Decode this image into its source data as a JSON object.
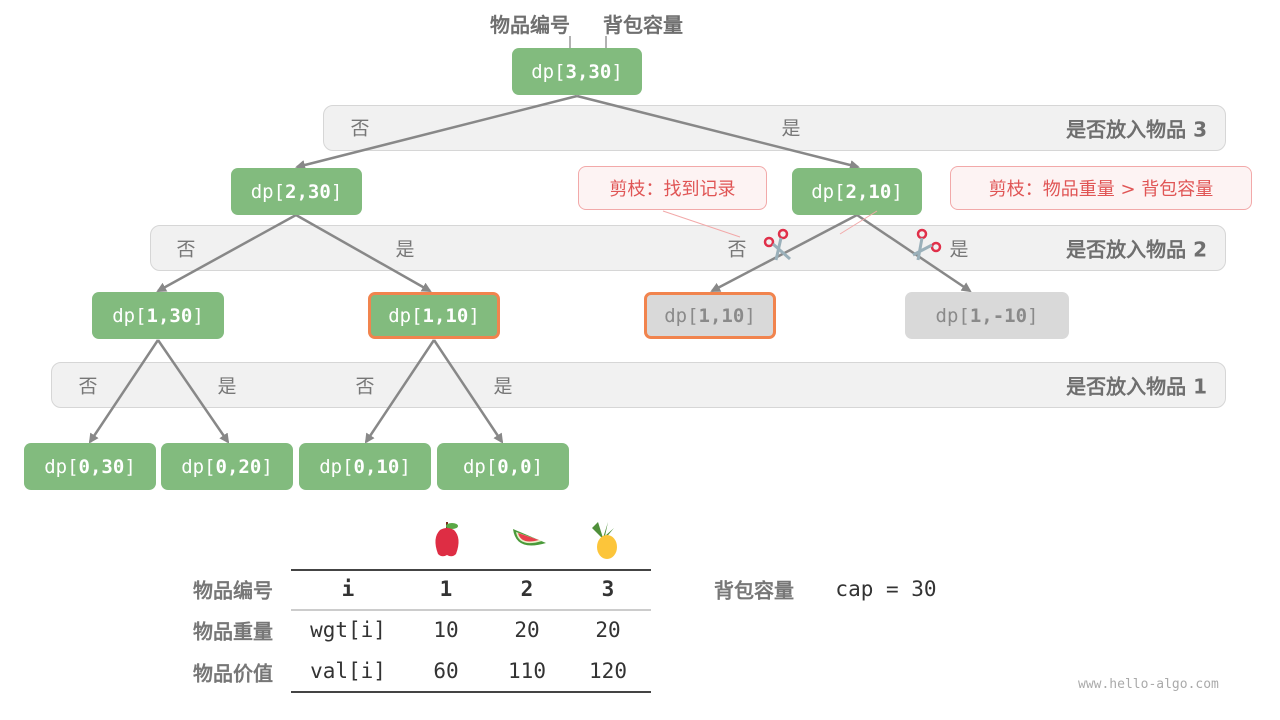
{
  "header": {
    "item_id_label": "物品编号",
    "capacity_label": "背包容量"
  },
  "node_prefix": "dp[",
  "node_suffix": "]",
  "nodes": [
    {
      "id": "root",
      "args": "3,30",
      "state": "normal"
    },
    {
      "id": "l2a",
      "args": "2,30",
      "state": "normal"
    },
    {
      "id": "l2b",
      "args": "2,10",
      "state": "normal"
    },
    {
      "id": "l1a",
      "args": "1,30",
      "state": "normal"
    },
    {
      "id": "l1b",
      "args": "1,10",
      "state": "highlighted"
    },
    {
      "id": "l1c",
      "args": "1,10",
      "state": "pruned-highlighted"
    },
    {
      "id": "l1d",
      "args": "1,-10",
      "state": "pruned"
    },
    {
      "id": "l0a",
      "args": "0,30",
      "state": "normal"
    },
    {
      "id": "l0b",
      "args": "0,20",
      "state": "normal"
    },
    {
      "id": "l0c",
      "args": "0,10",
      "state": "normal"
    },
    {
      "id": "l0d",
      "args": "0,0",
      "state": "normal"
    }
  ],
  "bands": [
    {
      "title": "是否放入物品 3"
    },
    {
      "title": "是否放入物品 2"
    },
    {
      "title": "是否放入物品 1"
    }
  ],
  "edge_labels": {
    "no": "否",
    "yes": "是"
  },
  "callouts": {
    "found_record": "剪枝：找到记录",
    "overweight": "剪枝：物品重量 > 背包容量"
  },
  "table": {
    "row_labels": [
      "物品编号",
      "物品重量",
      "物品价值"
    ],
    "header": [
      "i",
      "1",
      "2",
      "3"
    ],
    "rows": [
      [
        "wgt[i]",
        "10",
        "20",
        "20"
      ],
      [
        "val[i]",
        "60",
        "110",
        "120"
      ]
    ],
    "fruits": [
      "apple-icon",
      "watermelon-icon",
      "pineapple-icon"
    ],
    "capacity_label": "背包容量",
    "capacity_value": "cap = 30"
  },
  "colors": {
    "node": "#82bb7e",
    "pruned": "#d9d9d9",
    "highlight": "#f1844e",
    "callout": "#e05555"
  },
  "watermark": "www.hello-algo.com"
}
